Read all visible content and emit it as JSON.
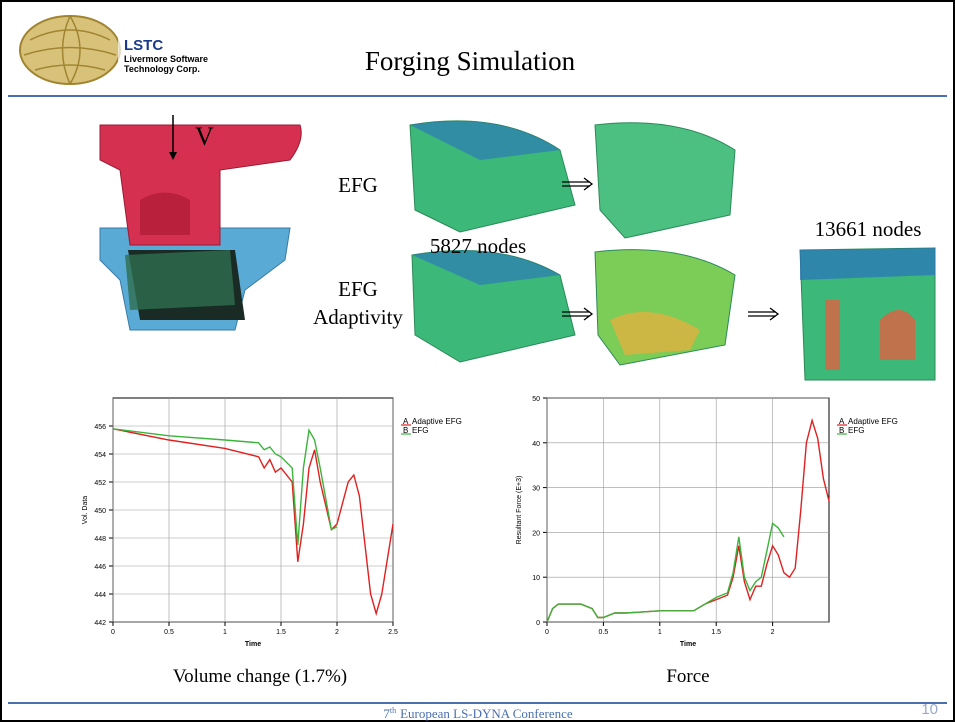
{
  "header": {
    "logo": {
      "name": "LSTC",
      "line1": "Livermore Software",
      "line2": "Technology Corp."
    },
    "title": "Forging Simulation"
  },
  "figure": {
    "velocity_label": "V",
    "row1_label": "EFG",
    "row2_label": [
      "EFG",
      "Adaptivity"
    ],
    "nodes_left": "5827 nodes",
    "nodes_right": "13661 nodes"
  },
  "chart_data": [
    {
      "type": "line",
      "xlabel": "Time",
      "ylabel": "Vol. Data",
      "caption": "Volume change  (1.7%)",
      "grid": true,
      "xlim": [
        0,
        2.5
      ],
      "ylim": [
        442,
        458
      ],
      "xticks": [
        0,
        0.5,
        1,
        1.5,
        2,
        2.5
      ],
      "yticks": [
        442,
        444,
        446,
        448,
        450,
        452,
        454,
        456
      ],
      "x": [
        0,
        0.5,
        1,
        1.3,
        1.35,
        1.4,
        1.45,
        1.5,
        1.6,
        1.65,
        1.7,
        1.75,
        1.8,
        1.85,
        1.95,
        2.0,
        2.1,
        2.15,
        2.2,
        2.3,
        2.35,
        2.4,
        2.5
      ],
      "series": [
        {
          "name": "Adaptive EFG",
          "marker": "A",
          "color": "#e02020",
          "values": [
            455.8,
            455,
            454.4,
            453.8,
            453,
            453.6,
            452.7,
            453,
            452,
            446.3,
            449,
            453,
            454.3,
            452,
            448.6,
            449,
            452,
            452.5,
            451,
            444,
            442.6,
            444,
            449
          ]
        },
        {
          "name": "EFG",
          "marker": "B",
          "color": "#3cb43c",
          "values": [
            455.8,
            455.3,
            455,
            454.8,
            454.3,
            454.5,
            454,
            453.8,
            453,
            447.5,
            453,
            455.7,
            455,
            453,
            448.6,
            448.8,
            null,
            null,
            null,
            null,
            null,
            null,
            null
          ]
        }
      ]
    },
    {
      "type": "line",
      "xlabel": "Time",
      "ylabel": "Resultant Force (E+3)",
      "caption": "Force",
      "grid": true,
      "xlim": [
        0,
        2.5
      ],
      "ylim": [
        0,
        50
      ],
      "xticks": [
        0,
        0.5,
        1,
        1.5,
        2
      ],
      "yticks": [
        0,
        10,
        20,
        30,
        40,
        50
      ],
      "x": [
        0,
        0.05,
        0.1,
        0.3,
        0.4,
        0.45,
        0.5,
        0.6,
        0.7,
        1.0,
        1.3,
        1.4,
        1.5,
        1.6,
        1.65,
        1.7,
        1.75,
        1.8,
        1.85,
        1.9,
        1.95,
        2.0,
        2.05,
        2.1,
        2.15,
        2.2,
        2.25,
        2.3,
        2.35,
        2.4,
        2.45,
        2.5
      ],
      "series": [
        {
          "name": "Adaptive EFG",
          "marker": "A",
          "color": "#e02020",
          "values": [
            0,
            3,
            4,
            4,
            3,
            1,
            1,
            2,
            2,
            2.5,
            2.5,
            4,
            5,
            6,
            10,
            17,
            9,
            5,
            8,
            8,
            13,
            17,
            15,
            11,
            10,
            12,
            25,
            40,
            45,
            41,
            32,
            27
          ]
        },
        {
          "name": "EFG",
          "marker": "B",
          "color": "#3cb43c",
          "values": [
            0,
            3,
            4,
            4,
            3,
            1,
            1,
            2,
            2,
            2.5,
            2.5,
            4,
            5.5,
            6.5,
            11,
            19,
            10,
            7,
            9,
            10,
            16,
            22,
            21,
            19,
            null,
            null,
            null,
            null,
            null,
            null,
            null,
            null
          ]
        }
      ]
    }
  ],
  "footer": {
    "edition": "7",
    "edition_suffix": "th",
    "conference": "European LS-DYNA Conference",
    "page": "10"
  }
}
